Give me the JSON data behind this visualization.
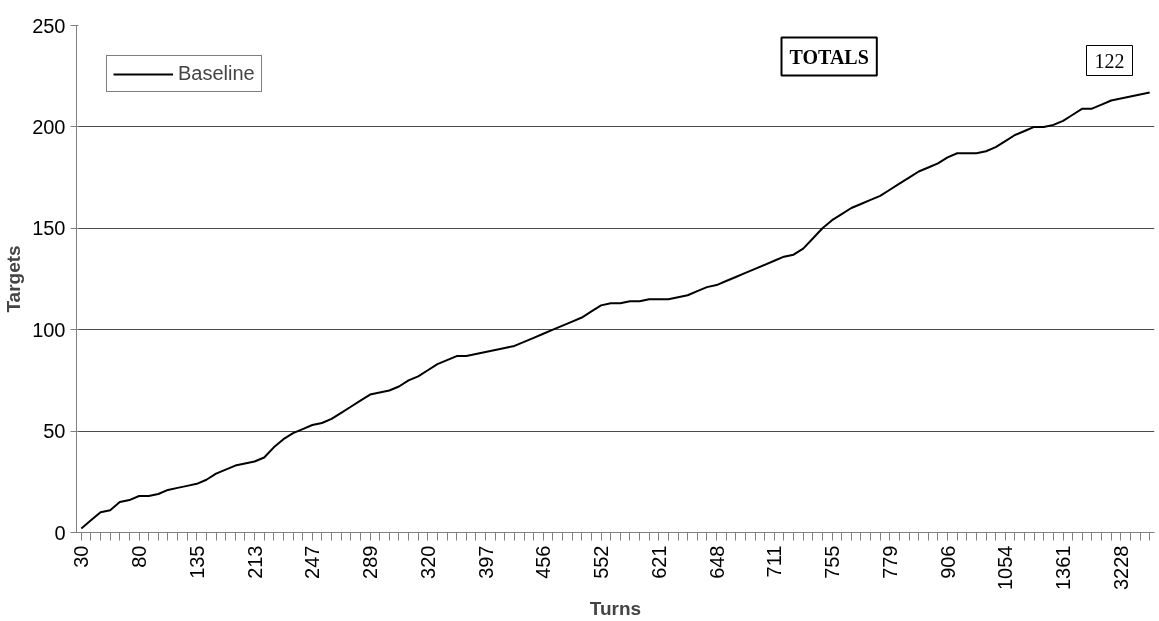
{
  "chart_data": {
    "type": "line",
    "xlabel": "Turns",
    "ylabel": "Targets",
    "categories": [
      "30",
      null,
      null,
      null,
      null,
      null,
      "80",
      null,
      null,
      null,
      null,
      null,
      "135",
      null,
      null,
      null,
      null,
      null,
      "213",
      null,
      null,
      null,
      null,
      null,
      "247",
      null,
      null,
      null,
      null,
      null,
      "289",
      null,
      null,
      null,
      null,
      null,
      "320",
      null,
      null,
      null,
      null,
      null,
      "397",
      null,
      null,
      null,
      null,
      null,
      "456",
      null,
      null,
      null,
      null,
      null,
      "552",
      null,
      null,
      null,
      null,
      null,
      "621",
      null,
      null,
      null,
      null,
      null,
      "648",
      null,
      null,
      null,
      null,
      null,
      "711",
      null,
      null,
      null,
      null,
      null,
      "755",
      null,
      null,
      null,
      null,
      null,
      "779",
      null,
      null,
      null,
      null,
      null,
      "906",
      null,
      null,
      null,
      null,
      null,
      "1054",
      null,
      null,
      null,
      null,
      null,
      "1361",
      null,
      null,
      null,
      null,
      null,
      "3228",
      null,
      null,
      null
    ],
    "series": [
      {
        "name": "Baseline",
        "color": "#000000",
        "values": [
          2,
          6,
          10,
          11,
          15,
          16,
          18,
          18,
          19,
          21,
          22,
          23,
          24,
          26,
          29,
          31,
          33,
          34,
          35,
          37,
          42,
          46,
          49,
          51,
          53,
          54,
          56,
          59,
          62,
          65,
          68,
          69,
          70,
          72,
          75,
          77,
          80,
          83,
          85,
          87,
          87,
          88,
          89,
          90,
          91,
          92,
          94,
          96,
          98,
          100,
          102,
          104,
          106,
          109,
          112,
          113,
          113,
          114,
          114,
          115,
          115,
          115,
          116,
          117,
          119,
          121,
          122,
          124,
          126,
          128,
          130,
          132,
          134,
          136,
          137,
          140,
          145,
          150,
          154,
          157,
          160,
          162,
          164,
          166,
          169,
          172,
          175,
          178,
          180,
          182,
          185,
          187,
          187,
          187,
          188,
          190,
          193,
          196,
          198,
          200,
          200,
          201,
          203,
          206,
          209,
          209,
          211,
          213,
          214,
          215,
          216,
          217
        ]
      }
    ],
    "ylim": [
      0,
      250
    ],
    "yticks": [
      0,
      50,
      100,
      150,
      200,
      250
    ],
    "grid": "y",
    "legend": "top left",
    "marker": "none",
    "line_style": "solid",
    "annotations": [
      "TOTALS",
      "122"
    ]
  }
}
